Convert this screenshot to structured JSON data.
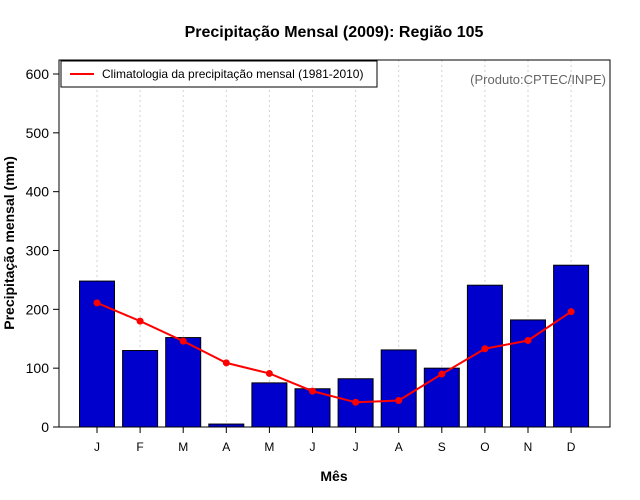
{
  "chart_data": {
    "type": "bar",
    "title": "Precipitação Mensal (2009): Região 105",
    "xlabel": "Mês",
    "ylabel": "Precipitação mensal (mm)",
    "ylim": [
      0,
      600
    ],
    "yticks": [
      0,
      100,
      200,
      300,
      400,
      500,
      600
    ],
    "categories": [
      "J",
      "F",
      "M",
      "A",
      "M",
      "J",
      "J",
      "A",
      "S",
      "O",
      "N",
      "D"
    ],
    "series": [
      {
        "name": "Precipitação mensal 2009",
        "type": "bar",
        "color": "#0000cd",
        "values": [
          248,
          130,
          152,
          5,
          75,
          65,
          82,
          131,
          100,
          241,
          182,
          275
        ]
      },
      {
        "name": "Climatologia da precipitação mensal (1981-2010)",
        "type": "line",
        "color": "#ff0000",
        "values": [
          211,
          180,
          146,
          109,
          91,
          61,
          42,
          45,
          90,
          133,
          147,
          196
        ]
      }
    ],
    "legend": {
      "position": "top-left",
      "entries": [
        "Climatologia da precipitação mensal (1981-2010)"
      ]
    },
    "annotation": "(Produto:CPTEC/INPE)",
    "grid": "vertical dotted"
  },
  "colors": {
    "bar_fill": "#0000cd",
    "line": "#ff0000",
    "grid": "#d3d3d3",
    "annotation": "#666666"
  }
}
